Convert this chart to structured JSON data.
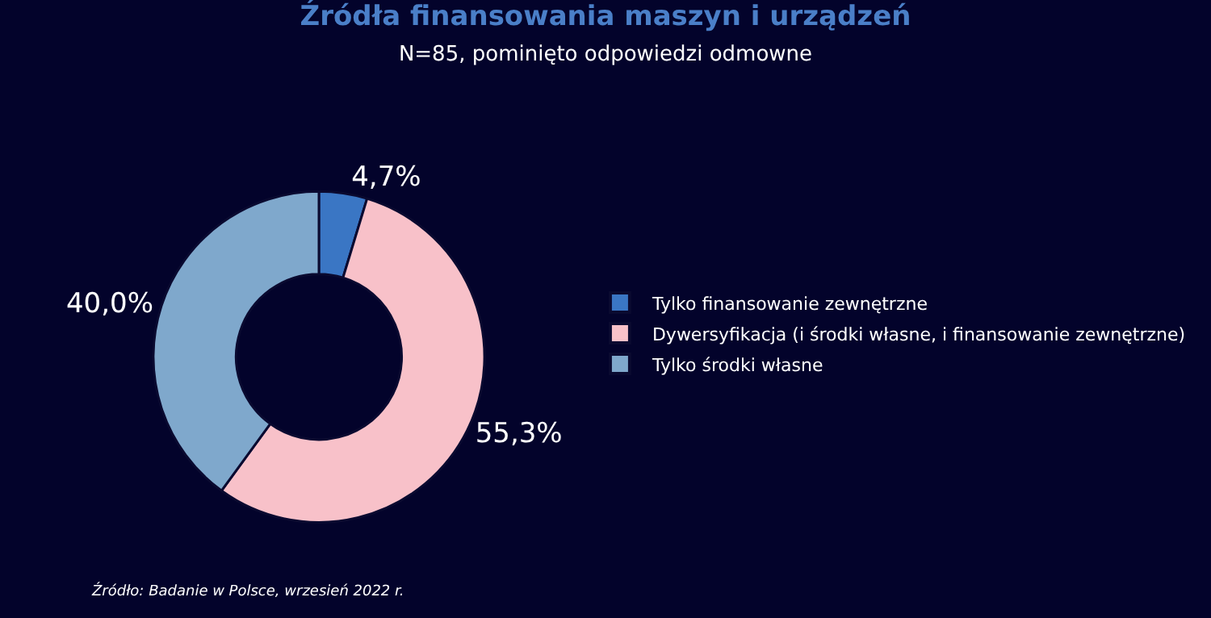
{
  "chart_data": {
    "type": "donut",
    "title": "Źródła finansowania maszyn i urządzeń",
    "subtitle": "N=85, pominięto odpowiedzi odmowne",
    "categories": [
      "Tylko finansowanie zewnętrzne",
      "Dywersyfikacja (i środki własne, i finansowanie zewnętrzne)",
      "Tylko środki własne"
    ],
    "values": [
      4.7,
      55.3,
      40.0
    ],
    "value_labels": [
      "4,7%",
      "55,3%",
      "40,0%"
    ],
    "colors": [
      "#3a76c4",
      "#f8c1c9",
      "#7fa8cc"
    ],
    "legend": "right",
    "annotations": [
      "Źródło: Badanie w Polsce, wrzesień 2022 r."
    ]
  }
}
